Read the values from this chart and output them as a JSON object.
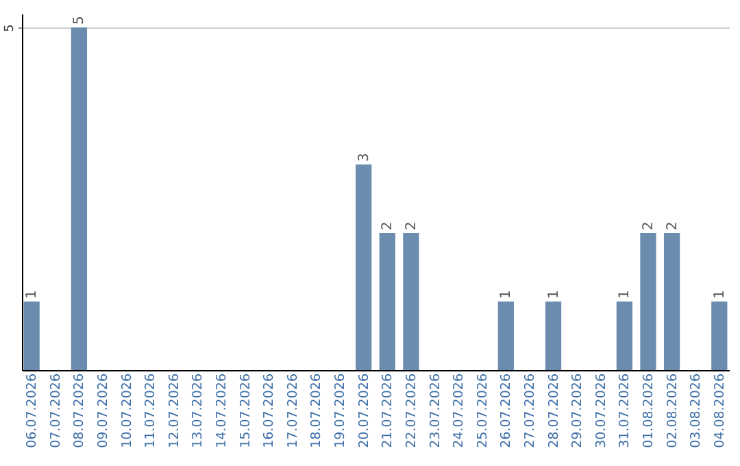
{
  "chart_data": {
    "type": "bar",
    "categories": [
      "06.07.2026",
      "07.07.2026",
      "08.07.2026",
      "09.07.2026",
      "10.07.2026",
      "11.07.2026",
      "12.07.2026",
      "13.07.2026",
      "14.07.2026",
      "15.07.2026",
      "16.07.2026",
      "17.07.2026",
      "18.07.2026",
      "19.07.2026",
      "20.07.2026",
      "21.07.2026",
      "22.07.2026",
      "23.07.2026",
      "24.07.2026",
      "25.07.2026",
      "26.07.2026",
      "27.07.2026",
      "28.07.2026",
      "29.07.2026",
      "30.07.2026",
      "31.07.2026",
      "01.08.2026",
      "02.08.2026",
      "03.08.2026",
      "04.08.2026"
    ],
    "values": [
      1,
      0,
      5,
      0,
      0,
      0,
      0,
      0,
      0,
      0,
      0,
      0,
      0,
      0,
      3,
      2,
      2,
      0,
      0,
      0,
      1,
      0,
      1,
      0,
      0,
      1,
      2,
      2,
      0,
      1
    ],
    "value_labels": [
      "1",
      null,
      "5",
      null,
      null,
      null,
      null,
      null,
      null,
      null,
      null,
      null,
      null,
      null,
      "3",
      "2",
      "2",
      null,
      null,
      null,
      "1",
      null,
      "1",
      null,
      null,
      "1",
      "2",
      "2",
      null,
      "1"
    ],
    "color": "#6b8cae",
    "ylim": [
      0,
      5.2
    ],
    "yticks": [
      5
    ],
    "grid": "y"
  }
}
